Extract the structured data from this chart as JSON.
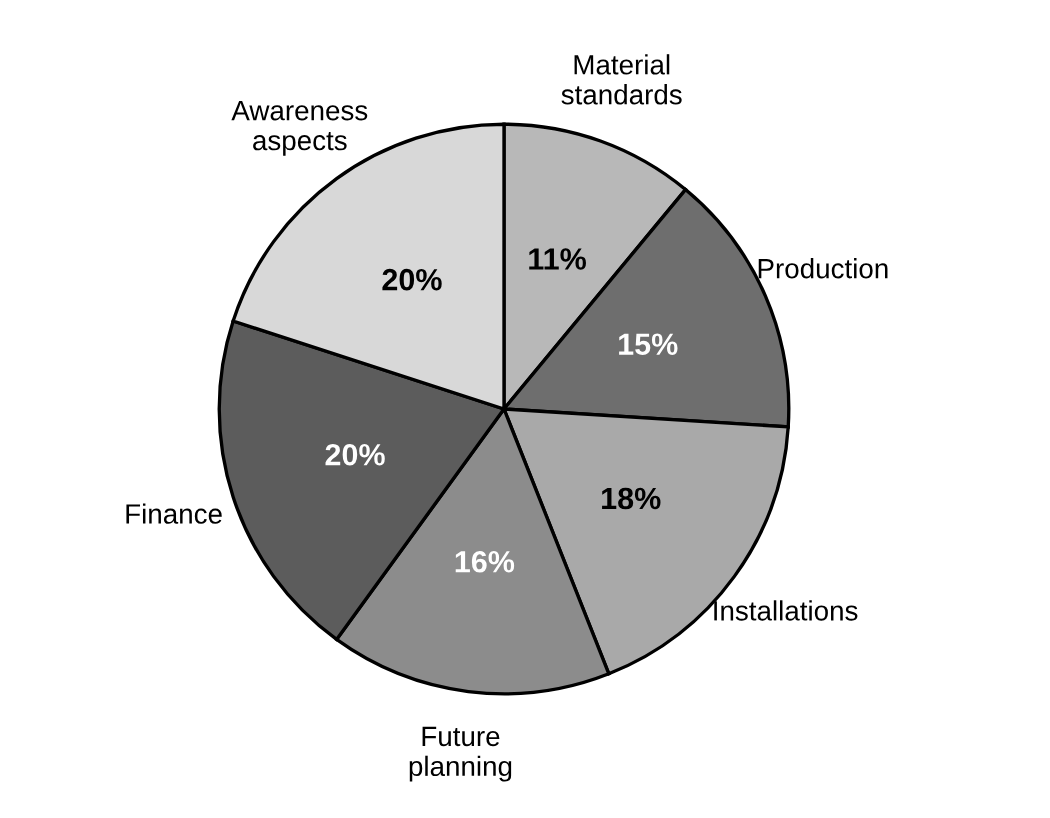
{
  "chart_data": {
    "type": "pie",
    "categories": [
      "Material\nstandards",
      "Production",
      "Installations",
      "Future\nplanning",
      "Finance",
      "Awareness\naspects"
    ],
    "values": [
      11,
      15,
      18,
      16,
      20,
      20
    ],
    "colors": [
      "#b8b8b8",
      "#6e6e6e",
      "#a9a9a9",
      "#8c8c8c",
      "#5c5c5c",
      "#d8d8d8"
    ],
    "value_labels": [
      "11%",
      "15%",
      "18%",
      "16%",
      "20%",
      "20%"
    ]
  }
}
